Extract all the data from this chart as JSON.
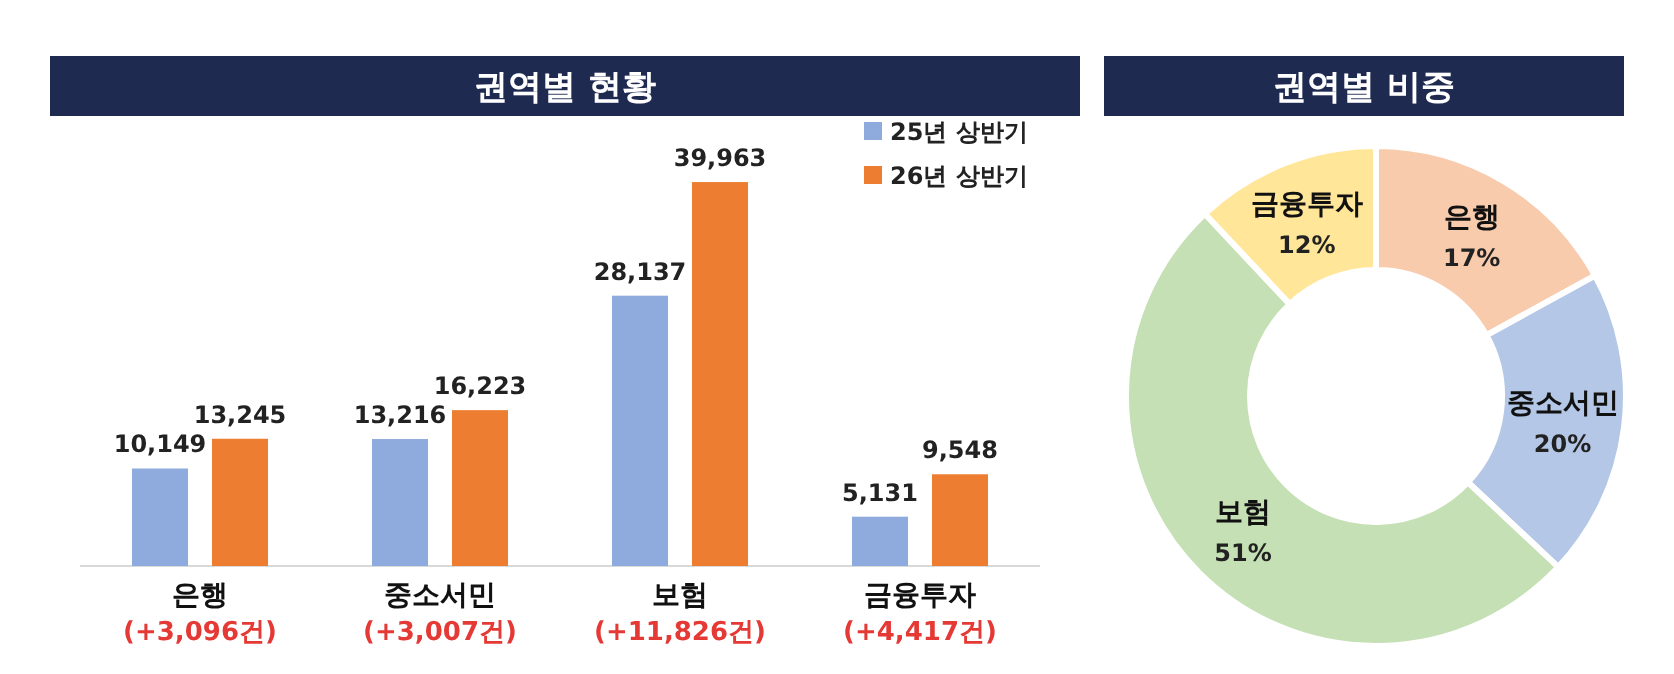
{
  "chart_data": [
    {
      "type": "bar",
      "title": "권역별 현황",
      "categories": [
        "은행",
        "중소서민",
        "보험",
        "금융투자"
      ],
      "series": [
        {
          "name": "25년 상반기",
          "color": "#8faadc",
          "values": [
            10149,
            13216,
            28137,
            5131
          ],
          "value_labels": [
            "10,149",
            "13,216",
            "28,137",
            "5,131"
          ]
        },
        {
          "name": "26년 상반기",
          "color": "#ed7d31",
          "values": [
            13245,
            16223,
            39963,
            9548
          ],
          "value_labels": [
            "13,245",
            "16,223",
            "39,963",
            "9,548"
          ]
        }
      ],
      "legend": "top right",
      "annotations": [
        "(+3,096건)",
        "(+3,007건)",
        "(+11,826건)",
        "(+4,417건)"
      ]
    },
    {
      "type": "donut",
      "title": "권역별 비중",
      "categories": [
        "은행",
        "중소서민",
        "보험",
        "금융투자"
      ],
      "values": [
        17,
        20,
        51,
        12
      ],
      "value_labels": [
        "17%",
        "20%",
        "51%",
        "12%"
      ],
      "colors": [
        "#f8cbad",
        "#b4c7e7",
        "#c5e0b4",
        "#ffe699"
      ]
    }
  ]
}
